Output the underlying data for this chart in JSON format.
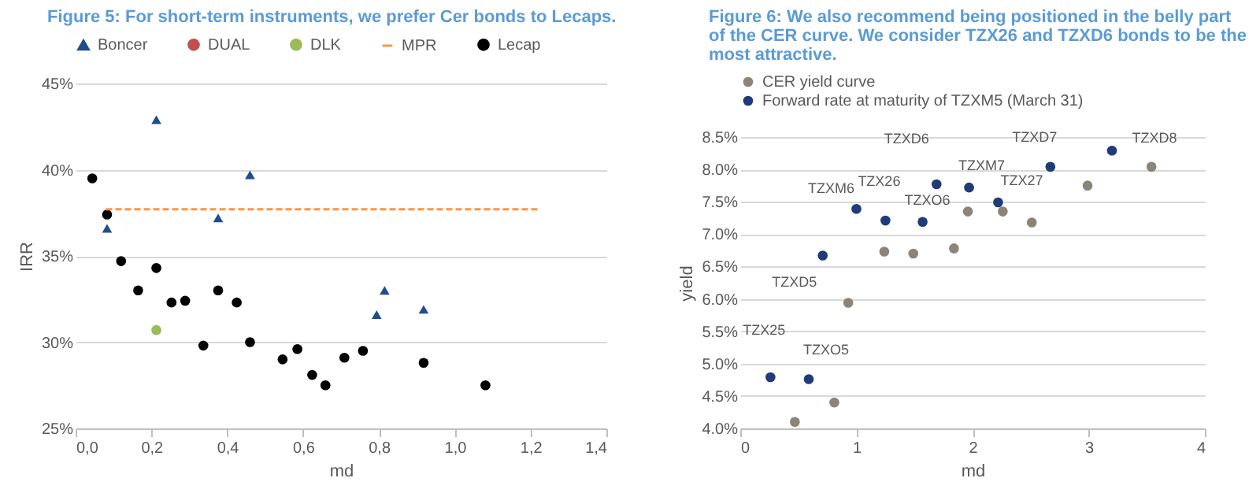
{
  "chart_data": [
    {
      "type": "scatter",
      "title": "Figure 5: For short-term instruments, we prefer Cer bonds to Lecaps.",
      "xlabel": "md",
      "ylabel": "IRR",
      "marker": "circle",
      "grid": "y",
      "legend": "top",
      "xlim": [
        0,
        1.4
      ],
      "xticks": [
        {
          "value": 0,
          "label": "0,0"
        },
        {
          "value": 0.2,
          "label": "0,2"
        },
        {
          "value": 0.4,
          "label": "0,4"
        },
        {
          "value": 0.6,
          "label": "0,6"
        },
        {
          "value": 0.8,
          "label": "0,8"
        },
        {
          "value": 1.0,
          "label": "1,0"
        },
        {
          "value": 1.2,
          "label": "1,2"
        },
        {
          "value": 1.4,
          "label": "1,4"
        }
      ],
      "ylim": [
        25,
        45
      ],
      "yticks": [
        {
          "value": 25,
          "label": "25%"
        },
        {
          "value": 30,
          "label": "30%"
        },
        {
          "value": 35,
          "label": "35%"
        },
        {
          "value": 40,
          "label": "40%"
        },
        {
          "value": 45,
          "label": "45%"
        }
      ],
      "series": [
        {
          "name": "Boncer",
          "color": "#1f4e8c",
          "marker": "triangle",
          "x": [
            0.083,
            0.213,
            0.376,
            0.46,
            0.815,
            0.794,
            0.918
          ],
          "values": [
            36.6,
            42.9,
            37.2,
            39.7,
            33.0,
            31.6,
            31.9
          ]
        },
        {
          "name": "DUAL",
          "color": "#c0504d"
        },
        {
          "name": "DLK",
          "color": "#9bbb59",
          "x": [
            0.213
          ],
          "values": [
            30.7
          ]
        },
        {
          "name": "MPR",
          "color": "#f79646",
          "type": "line",
          "line_style": "dashed",
          "marker": "none",
          "x": [
            0.08,
            1.22
          ],
          "values": [
            37.7,
            37.7
          ]
        },
        {
          "name": "Lecap",
          "color": "#000000",
          "x": [
            0.044,
            0.083,
            0.12,
            0.165,
            0.213,
            0.253,
            0.289,
            0.337,
            0.376,
            0.425,
            0.46,
            0.546,
            0.585,
            0.624,
            0.659,
            0.709,
            0.758,
            0.918,
            1.081
          ],
          "values": [
            39.5,
            37.4,
            34.7,
            33.0,
            34.3,
            32.3,
            32.4,
            29.8,
            33.0,
            32.3,
            30.0,
            29.0,
            29.6,
            28.1,
            27.5,
            29.1,
            29.5,
            28.8,
            27.5
          ]
        }
      ]
    },
    {
      "type": "scatter",
      "title": "Figure 6: We also recommend being positioned in the belly part of the CER curve. We consider TZX26 and TZXD6 bonds to be the most attractive.",
      "xlabel": "md",
      "ylabel": "yield",
      "marker": "circle",
      "grid": "y",
      "legend": "top left",
      "xlim": [
        0,
        4
      ],
      "xticks": [
        0,
        1,
        2,
        3,
        4
      ],
      "ylim": [
        4.0,
        8.5
      ],
      "yticks": [
        {
          "value": 4.0,
          "label": "4.0%"
        },
        {
          "value": 4.5,
          "label": "4.5%"
        },
        {
          "value": 5.0,
          "label": "5.0%"
        },
        {
          "value": 5.5,
          "label": "5.5%"
        },
        {
          "value": 6.0,
          "label": "6.0%"
        },
        {
          "value": 6.5,
          "label": "6.5%"
        },
        {
          "value": 7.0,
          "label": "7.0%"
        },
        {
          "value": 7.5,
          "label": "7.5%"
        },
        {
          "value": 8.0,
          "label": "8.0%"
        },
        {
          "value": 8.5,
          "label": "8.5%"
        }
      ],
      "series": [
        {
          "name": "CER yield curve",
          "color": "#8c8478",
          "x": [
            0.47,
            0.81,
            0.93,
            1.24,
            1.49,
            1.84,
            1.96,
            2.26,
            2.51,
            2.99,
            3.54
          ],
          "values": [
            4.1,
            4.4,
            5.94,
            6.73,
            6.7,
            6.78,
            7.35,
            7.35,
            7.18,
            7.75,
            8.04
          ]
        },
        {
          "name": "Forward rate at maturity of TZXM5 (March 31)",
          "color": "#1f3b7a",
          "x": [
            0.26,
            0.59,
            0.71,
            1.0,
            1.25,
            1.57,
            1.69,
            1.97,
            2.22,
            2.67,
            3.2
          ],
          "values": [
            4.79,
            4.76,
            6.67,
            7.39,
            7.21,
            7.19,
            7.77,
            7.72,
            7.49,
            8.04,
            8.29
          ]
        }
      ],
      "annotations": [
        {
          "text": "TZX25",
          "x": 0.26,
          "y": 4.79
        },
        {
          "text": "TZXO5",
          "x": 0.59,
          "y": 4.76
        },
        {
          "text": "TZXD5",
          "x": 0.71,
          "y": 6.67
        },
        {
          "text": "TZXM6",
          "x": 1.0,
          "y": 7.39
        },
        {
          "text": "TZX26",
          "x": 1.25,
          "y": 7.21
        },
        {
          "text": "TZXO6",
          "x": 1.57,
          "y": 7.19
        },
        {
          "text": "TZXD6",
          "x": 1.69,
          "y": 7.77
        },
        {
          "text": "TZXM7",
          "x": 1.97,
          "y": 7.72
        },
        {
          "text": "TZX27",
          "x": 2.22,
          "y": 7.49
        },
        {
          "text": "TZXD7",
          "x": 2.67,
          "y": 8.04
        },
        {
          "text": "TZXD8",
          "x": 3.2,
          "y": 8.29
        }
      ]
    }
  ]
}
